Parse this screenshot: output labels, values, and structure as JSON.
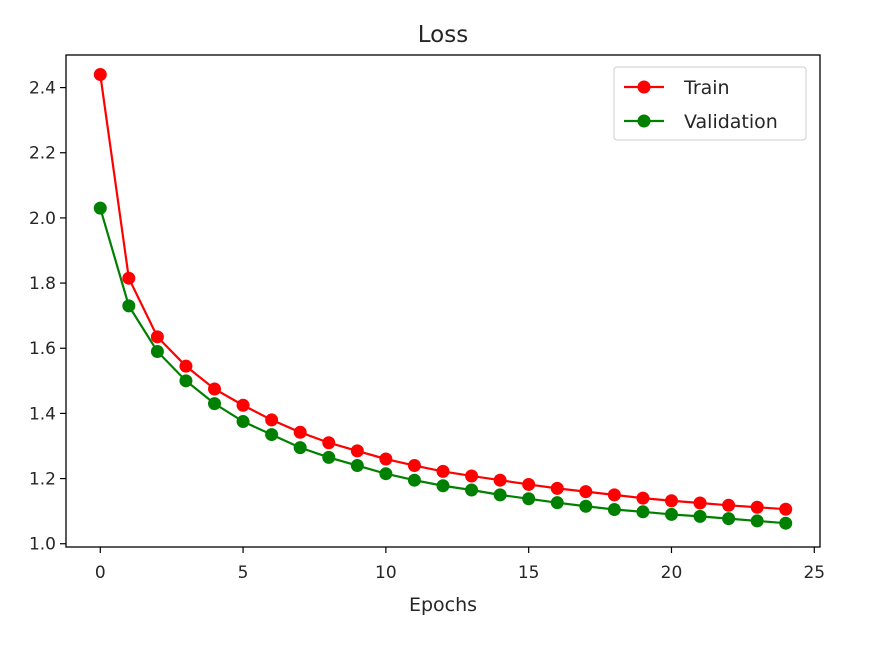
{
  "chart_data": {
    "type": "line",
    "title": "Loss",
    "xlabel": "Epochs",
    "ylabel": "",
    "xlim": [
      -1.2,
      25.2
    ],
    "ylim": [
      0.99,
      2.5
    ],
    "xticks": [
      0,
      5,
      10,
      15,
      20,
      25
    ],
    "xtick_labels": [
      "0",
      "5",
      "10",
      "15",
      "20",
      "25"
    ],
    "yticks": [
      1.0,
      1.2,
      1.4,
      1.6,
      1.8,
      2.0,
      2.2,
      2.4
    ],
    "ytick_labels": [
      "1.0",
      "1.2",
      "1.4",
      "1.6",
      "1.8",
      "2.0",
      "2.2",
      "2.4"
    ],
    "grid": false,
    "legend_position": "top-right",
    "x": [
      0,
      1,
      2,
      3,
      4,
      5,
      6,
      7,
      8,
      9,
      10,
      11,
      12,
      13,
      14,
      15,
      16,
      17,
      18,
      19,
      20,
      21,
      22,
      23,
      24
    ],
    "series": [
      {
        "name": "Train",
        "color": "#ff0000",
        "marker": "circle",
        "values": [
          2.44,
          1.815,
          1.635,
          1.545,
          1.475,
          1.425,
          1.38,
          1.342,
          1.31,
          1.285,
          1.26,
          1.24,
          1.222,
          1.208,
          1.195,
          1.182,
          1.17,
          1.16,
          1.15,
          1.14,
          1.132,
          1.125,
          1.118,
          1.112,
          1.106
        ]
      },
      {
        "name": "Validation",
        "color": "#008000",
        "marker": "circle",
        "values": [
          2.03,
          1.73,
          1.59,
          1.5,
          1.43,
          1.375,
          1.335,
          1.295,
          1.265,
          1.24,
          1.215,
          1.195,
          1.178,
          1.165,
          1.15,
          1.138,
          1.126,
          1.115,
          1.105,
          1.098,
          1.09,
          1.084,
          1.077,
          1.07,
          1.063
        ]
      }
    ]
  }
}
